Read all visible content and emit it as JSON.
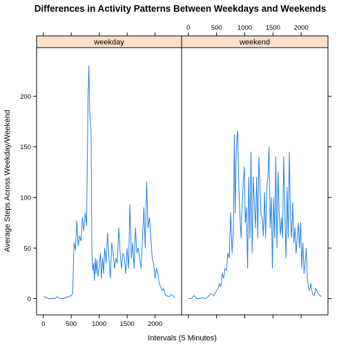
{
  "title": "Differences in Activity Patterns Between Weekdays and Weekends",
  "xlabel": "Intervals (5 Minutes)",
  "ylabel": "Average Steps Across Weekday/Weekend",
  "colors": {
    "line": "#1e7ee8",
    "strip": "#fedfc7",
    "frame": "#000000"
  },
  "chart_data": {
    "type": "line",
    "title": "Differences in Activity Patterns Between Weekdays and Weekends",
    "xlabel": "Intervals (5 Minutes)",
    "ylabel": "Average Steps Across Weekday/Weekend",
    "xlim": [
      -120,
      2475
    ],
    "ylim": [
      -16,
      248
    ],
    "x_ticks": [
      0,
      500,
      1000,
      1500,
      2000
    ],
    "x_tick_labels": [
      "0",
      "500",
      "1000",
      "1500",
      "2000"
    ],
    "y_ticks": [
      0,
      50,
      100,
      150,
      200
    ],
    "y_tick_labels": [
      "0",
      "50",
      "100",
      "150",
      "200"
    ],
    "panels": [
      {
        "label": "weekday",
        "x_axis_side": "bottom",
        "y_axis_side": "left",
        "x": [
          0,
          50,
          100,
          150,
          200,
          250,
          300,
          350,
          400,
          450,
          500,
          525,
          550,
          575,
          600,
          625,
          650,
          675,
          700,
          725,
          750,
          775,
          800,
          815,
          830,
          845,
          855,
          870,
          885,
          900,
          915,
          930,
          945,
          960,
          980,
          1000,
          1020,
          1040,
          1060,
          1080,
          1100,
          1125,
          1150,
          1175,
          1200,
          1225,
          1250,
          1275,
          1300,
          1325,
          1350,
          1375,
          1400,
          1425,
          1450,
          1475,
          1500,
          1525,
          1550,
          1575,
          1600,
          1625,
          1650,
          1675,
          1700,
          1725,
          1750,
          1775,
          1800,
          1825,
          1850,
          1875,
          1900,
          1925,
          1950,
          1975,
          2000,
          2025,
          2050,
          2075,
          2100,
          2125,
          2150,
          2175,
          2200,
          2250,
          2300,
          2355
        ],
        "y": [
          2,
          1,
          0,
          0,
          0,
          2,
          0,
          0,
          1,
          2,
          3,
          5,
          55,
          48,
          77,
          52,
          62,
          57,
          80,
          67,
          85,
          72,
          200,
          230,
          185,
          170,
          167,
          45,
          28,
          35,
          18,
          40,
          25,
          38,
          22,
          30,
          45,
          20,
          40,
          25,
          50,
          35,
          65,
          40,
          20,
          55,
          45,
          30,
          40,
          35,
          70,
          45,
          30,
          45,
          40,
          25,
          50,
          30,
          93,
          40,
          55,
          30,
          70,
          45,
          50,
          40,
          30,
          60,
          90,
          50,
          115,
          70,
          80,
          60,
          40,
          35,
          20,
          30,
          25,
          15,
          12,
          8,
          10,
          5,
          3,
          2,
          4,
          1
        ]
      },
      {
        "label": "weekend",
        "x_axis_side": "top",
        "y_axis_side": "right",
        "x": [
          0,
          50,
          100,
          150,
          200,
          250,
          300,
          350,
          400,
          450,
          500,
          525,
          550,
          575,
          600,
          625,
          650,
          675,
          700,
          725,
          750,
          775,
          800,
          815,
          830,
          845,
          860,
          875,
          890,
          905,
          920,
          935,
          950,
          970,
          990,
          1010,
          1030,
          1050,
          1070,
          1090,
          1110,
          1130,
          1150,
          1170,
          1190,
          1210,
          1230,
          1250,
          1270,
          1290,
          1310,
          1330,
          1350,
          1370,
          1390,
          1410,
          1430,
          1450,
          1470,
          1490,
          1510,
          1530,
          1550,
          1570,
          1590,
          1610,
          1630,
          1650,
          1670,
          1690,
          1710,
          1730,
          1750,
          1770,
          1790,
          1810,
          1830,
          1850,
          1870,
          1890,
          1910,
          1930,
          1950,
          1970,
          1990,
          2010,
          2030,
          2050,
          2070,
          2090,
          2110,
          2130,
          2150,
          2170,
          2200,
          2230,
          2260,
          2300,
          2355
        ],
        "y": [
          0,
          0,
          3,
          0,
          0,
          1,
          0,
          2,
          5,
          3,
          8,
          10,
          15,
          12,
          25,
          20,
          30,
          28,
          45,
          40,
          85,
          45,
          70,
          162,
          85,
          135,
          160,
          166,
          120,
          95,
          75,
          60,
          90,
          110,
          130,
          75,
          90,
          30,
          120,
          60,
          145,
          45,
          120,
          95,
          70,
          120,
          60,
          140,
          110,
          82,
          80,
          62,
          105,
          60,
          110,
          120,
          150,
          70,
          100,
          30,
          100,
          60,
          140,
          50,
          125,
          85,
          63,
          80,
          60,
          140,
          90,
          40,
          110,
          60,
          145,
          80,
          60,
          95,
          55,
          70,
          45,
          60,
          75,
          50,
          75,
          30,
          55,
          25,
          35,
          50,
          20,
          10,
          8,
          15,
          5,
          3,
          10,
          5,
          2
        ]
      }
    ]
  }
}
